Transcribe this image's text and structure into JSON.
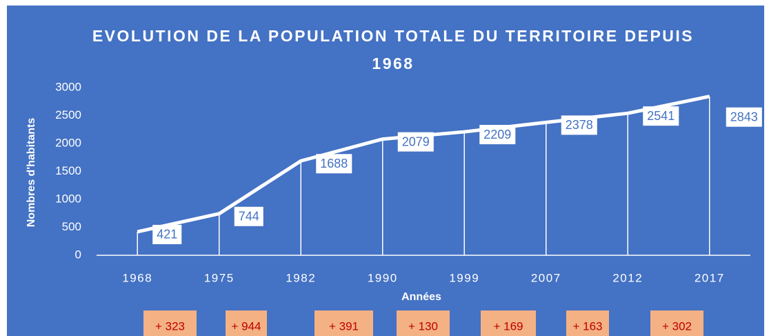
{
  "chart_data": {
    "type": "line",
    "title": "EVOLUTION DE LA POPULATION TOTALE DU TERRITOIRE DEPUIS 1968",
    "x_label": "Années",
    "y_label": "Nombres d'habitants",
    "categories": [
      "1968",
      "1975",
      "1982",
      "1990",
      "1999",
      "2007",
      "2012",
      "2017"
    ],
    "series": [
      {
        "name": "Population",
        "color": "#ffffff",
        "values": [
          421,
          744,
          1688,
          2079,
          2209,
          2378,
          2541,
          2843
        ]
      }
    ],
    "ylim": [
      0,
      3000
    ],
    "yticks": [
      0,
      500,
      1000,
      1500,
      2000,
      2500,
      3000
    ],
    "annotations": [
      "+ 323",
      "+ 944",
      "+ 391",
      "+ 130",
      "+ 169",
      "+ 163",
      "+ 302"
    ]
  }
}
